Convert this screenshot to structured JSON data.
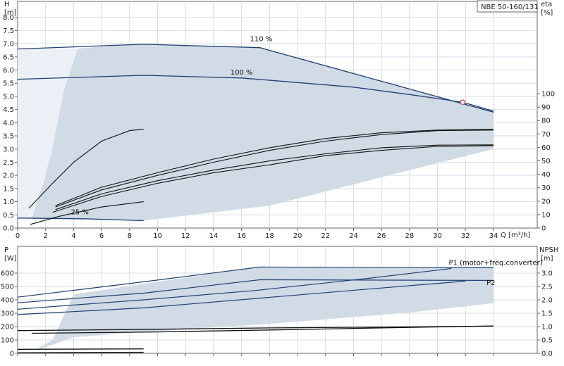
{
  "chart_data": [
    {
      "type": "line",
      "title": "NBE 50-160/131",
      "ylabel": "H",
      "yunit": "[m]",
      "y2label": "eta",
      "y2unit": "[%]",
      "xlabel": "Q [m³/h]",
      "xlim": [
        0,
        38
      ],
      "ylim": [
        0,
        8.5
      ],
      "y2lim": [
        0,
        100
      ],
      "xticks": [
        0,
        2,
        4,
        6,
        8,
        10,
        12,
        14,
        16,
        18,
        20,
        22,
        24,
        26,
        28,
        30,
        32,
        34
      ],
      "yticks": [
        0.0,
        0.5,
        1.0,
        1.5,
        2.0,
        2.5,
        3.0,
        3.5,
        4.0,
        4.5,
        5.0,
        5.5,
        6.0,
        6.5,
        7.0,
        7.5,
        8.0
      ],
      "y2ticks": [
        0,
        10,
        20,
        30,
        40,
        50,
        60,
        70,
        80,
        90,
        100
      ],
      "grid": true,
      "region_color": "#d0dbe6",
      "curve_color": "#1f3f70",
      "operating_region": [
        [
          1.0,
          0.35
        ],
        [
          2.0,
          2.0
        ],
        [
          3.0,
          4.8
        ],
        [
          4.0,
          6.6
        ],
        [
          4.3,
          6.82
        ],
        [
          9,
          6.98
        ],
        [
          17.3,
          6.85
        ],
        [
          34,
          4.4
        ],
        [
          34,
          3.0
        ],
        [
          28,
          2.2
        ],
        [
          18,
          0.85
        ],
        [
          9,
          0.28
        ],
        [
          1.0,
          0.35
        ]
      ],
      "series": [
        {
          "name": "110 %",
          "values": [
            [
              0,
              6.8
            ],
            [
              9,
              6.98
            ],
            [
              17.3,
              6.85
            ],
            [
              34,
              4.4
            ]
          ]
        },
        {
          "name": "100 %",
          "values": [
            [
              0,
              5.65
            ],
            [
              9,
              5.8
            ],
            [
              16,
              5.7
            ],
            [
              24,
              5.35
            ],
            [
              28,
              5.07
            ],
            [
              31.8,
              4.78
            ],
            [
              34,
              4.44
            ]
          ]
        },
        {
          "name": "25 %",
          "values": [
            [
              0,
              0.38
            ],
            [
              2,
              0.37
            ],
            [
              5,
              0.35
            ],
            [
              9,
              0.28
            ]
          ]
        }
      ],
      "efficiency_curves": [
        {
          "values": [
            [
              0.9,
              0.14
            ],
            [
              3,
              0.45
            ],
            [
              6,
              0.8
            ],
            [
              9,
              1.0
            ]
          ]
        },
        {
          "values": [
            [
              2.5,
              0.6
            ],
            [
              6,
              1.2
            ],
            [
              10,
              1.7
            ],
            [
              14,
              2.1
            ],
            [
              18,
              2.4
            ],
            [
              22,
              2.75
            ],
            [
              26,
              2.95
            ],
            [
              30,
              3.1
            ],
            [
              34,
              3.13
            ]
          ]
        },
        {
          "values": [
            [
              2.7,
              0.7
            ],
            [
              6,
              1.3
            ],
            [
              10,
              1.8
            ],
            [
              14,
              2.2
            ],
            [
              18,
              2.55
            ],
            [
              22,
              2.82
            ],
            [
              26,
              3.05
            ],
            [
              30,
              3.15
            ],
            [
              34,
              3.16
            ]
          ]
        },
        {
          "values": [
            [
              2.7,
              0.8
            ],
            [
              6,
              1.45
            ],
            [
              10,
              2.0
            ],
            [
              14,
              2.5
            ],
            [
              18,
              2.95
            ],
            [
              22,
              3.3
            ],
            [
              26,
              3.55
            ],
            [
              30,
              3.7
            ],
            [
              34,
              3.72
            ]
          ]
        },
        {
          "values": [
            [
              2.7,
              0.85
            ],
            [
              6,
              1.55
            ],
            [
              10,
              2.1
            ],
            [
              14,
              2.62
            ],
            [
              18,
              3.05
            ],
            [
              22,
              3.4
            ],
            [
              26,
              3.62
            ],
            [
              30,
              3.72
            ],
            [
              34,
              3.75
            ]
          ]
        },
        {
          "values": [
            [
              0.8,
              0.75
            ],
            [
              2.5,
              1.7
            ],
            [
              4,
              2.5
            ],
            [
              6,
              3.3
            ],
            [
              8,
              3.7
            ],
            [
              9,
              3.75
            ]
          ]
        }
      ],
      "marker": {
        "x": 31.8,
        "y": 4.78
      },
      "annotations": [
        "110 %",
        "100 %",
        "25 %"
      ]
    },
    {
      "type": "line",
      "ylabel": "P",
      "yunit": "[W]",
      "y2label": "NPSH",
      "y2unit": "[m]",
      "xlim": [
        0,
        38
      ],
      "ylim": [
        0,
        700
      ],
      "y2lim": [
        0,
        3.5
      ],
      "yticks": [
        0,
        100,
        200,
        300,
        400,
        500,
        600
      ],
      "y2ticks": [
        0.0,
        0.5,
        1.0,
        1.5,
        2.0,
        2.5,
        3.0
      ],
      "grid": true,
      "region_color": "#d0dbe6",
      "curve_color": "#1f3f70",
      "operating_region": [
        [
          1.0,
          10
        ],
        [
          2.5,
          100
        ],
        [
          4,
          440
        ],
        [
          9,
          520
        ],
        [
          17.3,
          645
        ],
        [
          34,
          645
        ],
        [
          34,
          375
        ],
        [
          28,
          305
        ],
        [
          18,
          220
        ],
        [
          9,
          160
        ],
        [
          4,
          120
        ],
        [
          1.0,
          10
        ]
      ],
      "series": [
        {
          "name": "P1 (motor+freq.converter)",
          "values": [
            [
              0,
              420
            ],
            [
              9,
              535
            ],
            [
              17.3,
              645
            ],
            [
              34,
              640
            ]
          ]
        },
        {
          "name": "P2",
          "values": [
            [
              0,
              378
            ],
            [
              9,
              450
            ],
            [
              17.3,
              550
            ],
            [
              34,
              545
            ]
          ]
        },
        {
          "name": "P1 (motor+freq.converter)",
          "values": [
            [
              0,
              330
            ],
            [
              9,
              400
            ],
            [
              17,
              470
            ],
            [
              25,
              560
            ],
            [
              31,
              635
            ]
          ]
        },
        {
          "name": "P2",
          "values": [
            [
              0,
              290
            ],
            [
              9,
              340
            ],
            [
              17,
              410
            ],
            [
              25,
              480
            ],
            [
              32,
              540
            ]
          ]
        },
        {
          "values": [
            [
              0,
              170
            ],
            [
              10,
              180
            ],
            [
              18,
              190
            ],
            [
              25,
              195
            ],
            [
              34,
              203
            ]
          ]
        },
        {
          "values": [
            [
              1,
              150
            ],
            [
              10,
              160
            ],
            [
              18,
              175
            ],
            [
              26,
              190
            ],
            [
              34,
              205
            ]
          ]
        },
        {
          "values": [
            [
              0,
              30
            ],
            [
              9,
              33
            ]
          ]
        },
        {
          "values": [
            [
              0,
              5
            ],
            [
              9,
              8
            ]
          ]
        }
      ],
      "npsh_curve": [
        [
          0,
          0.02
        ],
        [
          9,
          0.02
        ],
        [
          34,
          1.0
        ]
      ],
      "annotations": [
        "P1 (motor+freq.converter)",
        "P2"
      ]
    }
  ]
}
